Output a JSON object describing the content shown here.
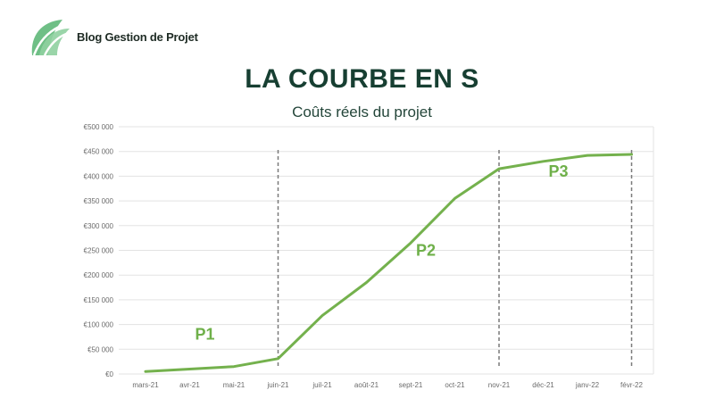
{
  "brand": {
    "name": "Blog Gestion de Projet",
    "logo_icon": "leaf-logo-icon",
    "logo_color": "#6fbf86"
  },
  "chart_data": {
    "type": "line",
    "title": "LA COURBE EN S",
    "subtitle": "Coûts réels du projet",
    "categories": [
      "mars-21",
      "avr-21",
      "mai-21",
      "juin-21",
      "juil-21",
      "août-21",
      "sept-21",
      "oct-21",
      "nov-21",
      "déc-21",
      "janv-22",
      "févr-22"
    ],
    "y_ticks": [
      "€0",
      "€50 000",
      "€100 000",
      "€150 000",
      "€200 000",
      "€250 000",
      "€300 000",
      "€350 000",
      "€400 000",
      "€450 000",
      "€500 000"
    ],
    "ylim": [
      0,
      500000
    ],
    "series": [
      {
        "values": [
          5000,
          10000,
          15000,
          31000,
          118000,
          185000,
          265000,
          355000,
          415000,
          430000,
          442000,
          444000
        ],
        "color": "#74b14d"
      }
    ],
    "phase_dividers": [
      "juin-21",
      "nov-21",
      "févr-22"
    ],
    "phases": [
      {
        "label": "P1",
        "x": "avr-21",
        "y": 80000
      },
      {
        "label": "P2",
        "x": "sept-21",
        "y": 250000
      },
      {
        "label": "P3",
        "x": "déc-21",
        "y": 410000
      }
    ],
    "grid": true,
    "legend": "none"
  }
}
